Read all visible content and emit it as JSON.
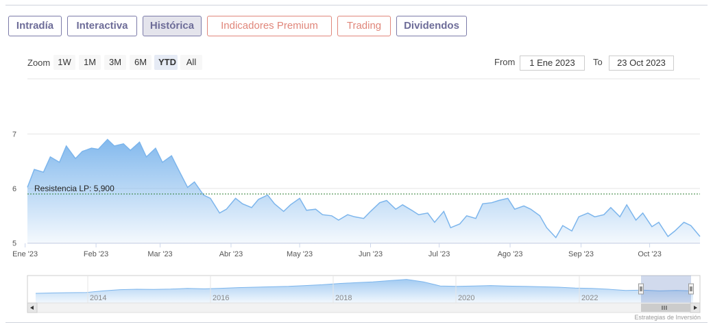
{
  "tabs": [
    {
      "label": "Intradía",
      "style": "normal"
    },
    {
      "label": "Interactiva",
      "style": "normal"
    },
    {
      "label": "Histórica",
      "style": "active"
    },
    {
      "label": "Indicadores Premium",
      "style": "premium"
    },
    {
      "label": "Trading",
      "style": "premium"
    },
    {
      "label": "Dividendos",
      "style": "normal"
    }
  ],
  "range_selector": {
    "zoom_label": "Zoom",
    "buttons": [
      "1W",
      "1M",
      "3M",
      "6M",
      "YTD",
      "All"
    ],
    "selected": "YTD",
    "from_label": "From",
    "from_value": "1 Ene 2023",
    "to_label": "To",
    "to_value": "23 Oct 2023"
  },
  "credits": "Estrategias de Inversión",
  "colors": {
    "line": "#7cb5ec",
    "tab_text": "#6d6c98",
    "premium_text": "#e0867a",
    "resistance_line": "#2e7d32"
  },
  "chart_data": {
    "type": "area",
    "title": "",
    "xlabel": "",
    "ylabel": "",
    "ylim": [
      5,
      7
    ],
    "y_ticks": [
      5,
      6,
      7
    ],
    "x_ticks": [
      "Ene '23",
      "Feb '23",
      "Mar '23",
      "Abr '23",
      "May '23",
      "Jun '23",
      "Jul '23",
      "Ago '23",
      "Sep '23",
      "Oct '23"
    ],
    "grid": true,
    "resistance": {
      "label": "Resistencia LP: 5,900",
      "value": 5.9
    },
    "series": [
      {
        "x": [
          "2023-01-02",
          "2023-01-05",
          "2023-01-09",
          "2023-01-12",
          "2023-01-16",
          "2023-01-19",
          "2023-01-23",
          "2023-01-26",
          "2023-01-30",
          "2023-02-02",
          "2023-02-06",
          "2023-02-09",
          "2023-02-13",
          "2023-02-16",
          "2023-02-20",
          "2023-02-23",
          "2023-02-27",
          "2023-03-02",
          "2023-03-06",
          "2023-03-09",
          "2023-03-13",
          "2023-03-16",
          "2023-03-20",
          "2023-03-23",
          "2023-03-27",
          "2023-03-30",
          "2023-04-03",
          "2023-04-06",
          "2023-04-10",
          "2023-04-13",
          "2023-04-17",
          "2023-04-20",
          "2023-04-24",
          "2023-04-27",
          "2023-05-01",
          "2023-05-04",
          "2023-05-08",
          "2023-05-11",
          "2023-05-15",
          "2023-05-18",
          "2023-05-22",
          "2023-05-25",
          "2023-05-29",
          "2023-06-01",
          "2023-06-05",
          "2023-06-08",
          "2023-06-12",
          "2023-06-15",
          "2023-06-19",
          "2023-06-22",
          "2023-06-26",
          "2023-06-29",
          "2023-07-03",
          "2023-07-06",
          "2023-07-10",
          "2023-07-13",
          "2023-07-17",
          "2023-07-20",
          "2023-07-24",
          "2023-07-27",
          "2023-07-31",
          "2023-08-03",
          "2023-08-07",
          "2023-08-10",
          "2023-08-14",
          "2023-08-17",
          "2023-08-21",
          "2023-08-24",
          "2023-08-28",
          "2023-08-31",
          "2023-09-04",
          "2023-09-07",
          "2023-09-11",
          "2023-09-14",
          "2023-09-18",
          "2023-09-21",
          "2023-09-25",
          "2023-09-28",
          "2023-10-02",
          "2023-10-05",
          "2023-10-09",
          "2023-10-12",
          "2023-10-16",
          "2023-10-19",
          "2023-10-23"
        ],
        "values": [
          6.02,
          6.35,
          6.3,
          6.58,
          6.48,
          6.78,
          6.55,
          6.68,
          6.74,
          6.72,
          6.9,
          6.78,
          6.82,
          6.7,
          6.85,
          6.58,
          6.74,
          6.48,
          6.6,
          6.35,
          6.02,
          6.12,
          5.88,
          5.82,
          5.55,
          5.62,
          5.82,
          5.72,
          5.65,
          5.8,
          5.88,
          5.72,
          5.58,
          5.7,
          5.82,
          5.6,
          5.62,
          5.52,
          5.5,
          5.42,
          5.52,
          5.48,
          5.45,
          5.58,
          5.74,
          5.78,
          5.62,
          5.7,
          5.6,
          5.52,
          5.55,
          5.38,
          5.58,
          5.28,
          5.35,
          5.5,
          5.45,
          5.72,
          5.74,
          5.78,
          5.82,
          5.62,
          5.68,
          5.62,
          5.5,
          5.28,
          5.1,
          5.32,
          5.22,
          5.48,
          5.55,
          5.48,
          5.52,
          5.65,
          5.48,
          5.7,
          5.42,
          5.55,
          5.3,
          5.38,
          5.12,
          5.22,
          5.38,
          5.32,
          5.12
        ]
      }
    ],
    "navigator": {
      "x_ticks": [
        "2014",
        "2016",
        "2018",
        "2020",
        "2022"
      ],
      "values": [
        1.0,
        1.05,
        1.08,
        1.1,
        1.3,
        1.45,
        1.5,
        1.48,
        1.52,
        1.6,
        1.55,
        1.62,
        1.7,
        1.75,
        1.8,
        1.85,
        1.95,
        2.05,
        2.2,
        2.3,
        2.4,
        2.55,
        2.7,
        2.4,
        1.9,
        1.85,
        1.9,
        1.95,
        1.88,
        1.85,
        1.8,
        1.75,
        1.65,
        1.6,
        1.5,
        1.35,
        1.4,
        1.3,
        1.35,
        1.3
      ]
    }
  }
}
